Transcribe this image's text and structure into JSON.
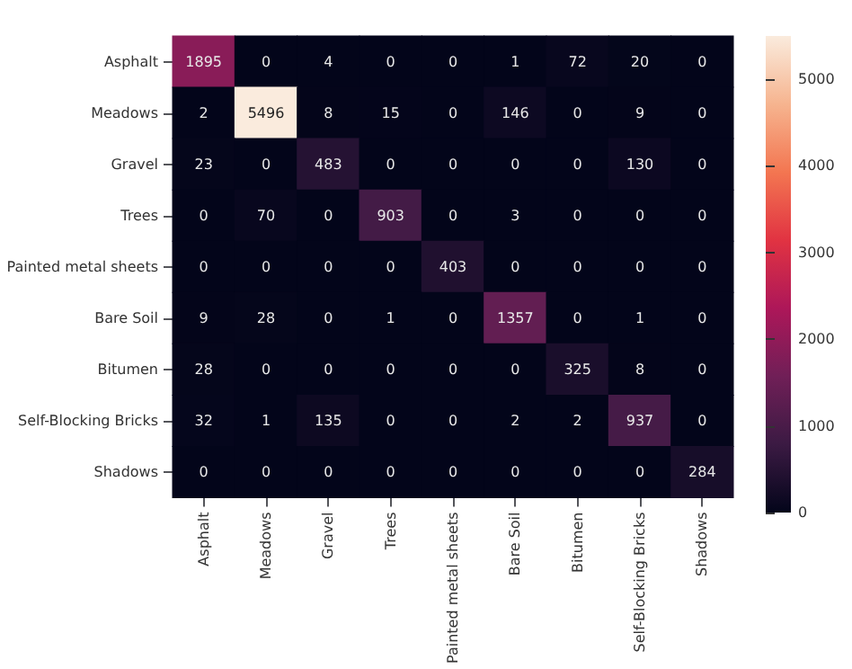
{
  "chart_data": {
    "type": "heatmap",
    "categories": [
      "Asphalt",
      "Meadows",
      "Gravel",
      "Trees",
      "Painted metal sheets",
      "Bare Soil",
      "Bitumen",
      "Self-Blocking Bricks",
      "Shadows"
    ],
    "y_categories": [
      "Asphalt",
      "Meadows",
      "Gravel",
      "Trees",
      "Painted metal sheets",
      "Bare Soil",
      "Bitumen",
      "Self-Blocking Bricks",
      "Shadows"
    ],
    "cells": [
      [
        1895,
        0,
        4,
        0,
        0,
        1,
        72,
        20,
        0
      ],
      [
        2,
        5496,
        8,
        15,
        0,
        146,
        0,
        9,
        0
      ],
      [
        23,
        0,
        483,
        0,
        0,
        0,
        0,
        130,
        0
      ],
      [
        0,
        70,
        0,
        903,
        0,
        3,
        0,
        0,
        0
      ],
      [
        0,
        0,
        0,
        0,
        403,
        0,
        0,
        0,
        0
      ],
      [
        9,
        28,
        0,
        1,
        0,
        1357,
        0,
        1,
        0
      ],
      [
        28,
        0,
        0,
        0,
        0,
        0,
        325,
        8,
        0
      ],
      [
        32,
        1,
        135,
        0,
        0,
        2,
        2,
        937,
        0
      ],
      [
        0,
        0,
        0,
        0,
        0,
        0,
        0,
        0,
        284
      ]
    ],
    "clim": [
      0,
      5496
    ],
    "cticks": [
      0,
      1000,
      2000,
      3000,
      4000,
      5000
    ],
    "data_labels": true
  }
}
